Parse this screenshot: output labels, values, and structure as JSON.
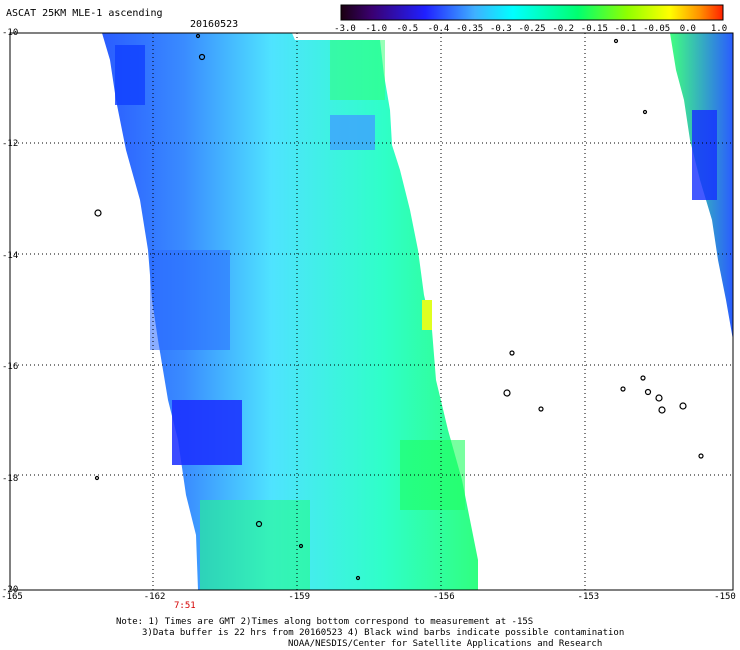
{
  "header": {
    "title": "ASCAT 25KM MLE-1 ascending",
    "date": "20160523"
  },
  "colorbar": {
    "ticks": [
      "-3.0",
      "-1.0",
      "-0.5",
      "-0.4",
      "-0.35",
      "-0.3",
      "-0.25",
      "-0.2",
      "-0.15",
      "-0.1",
      "-0.05",
      "0.0",
      "1.0"
    ],
    "colors": [
      "#1a0010",
      "#3a0070",
      "#2020ff",
      "#3fb0ff",
      "#00ffff",
      "#00ff70",
      "#90ff00",
      "#ffff00",
      "#ff9000",
      "#ff2000"
    ]
  },
  "axes": {
    "lat_labels": [
      "-10",
      "-12",
      "-14",
      "-16",
      "-18",
      "-20"
    ],
    "lon_labels": [
      "-165",
      "-162",
      "-159",
      "-156",
      "-153",
      "-150"
    ],
    "lat_range": [
      -20,
      -10
    ],
    "lon_range": [
      -165,
      -150
    ],
    "grid": "dotted"
  },
  "swath": {
    "time_label": "7:51"
  },
  "notes": {
    "line1": "Note: 1) Times are GMT 2)Times along bottom correspond to measurement at -15S",
    "line2": "3)Data buffer is 22 hrs from 20160523 4) Black wind barbs indicate possible contamination",
    "line3": "NOAA/NESDIS/Center for Satellite Applications and Research"
  }
}
